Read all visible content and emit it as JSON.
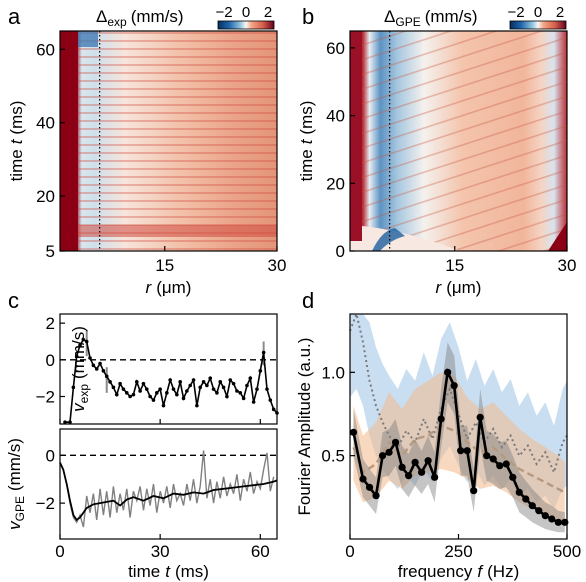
{
  "colors": {
    "hot": "#8b0015",
    "cold": "#1a4f8c",
    "black": "#000000",
    "gray": "#7a7a7a",
    "blue_band": "#9fc3e6",
    "orange_band": "#f2b98a",
    "tan": "#b59a80"
  },
  "chart_data": [
    {
      "panel": "a",
      "type": "heatmap",
      "colorbar_label_main": "Δ",
      "colorbar_label_sub": "exp",
      "colorbar_label_unit": "(mm/s)",
      "colorbar_ticks": [
        "−2",
        "0",
        "2"
      ],
      "clim": [
        -2,
        2
      ],
      "xlabel_main": "r",
      "xlabel_unit": "(μm)",
      "ylabel_main": "time",
      "ylabel_var": "t",
      "ylabel_unit": "(ms)",
      "xlim": [
        1,
        30
      ],
      "ylim": [
        5,
        65
      ],
      "xticks": [
        15,
        30
      ],
      "yticks": [
        5,
        20,
        40,
        60
      ],
      "marker_r": 6.3
    },
    {
      "panel": "b",
      "type": "heatmap",
      "colorbar_label_main": "Δ",
      "colorbar_label_sub": "GPE",
      "colorbar_label_unit": "(mm/s)",
      "colorbar_ticks": [
        "−2",
        "0",
        "2"
      ],
      "clim": [
        -2,
        2
      ],
      "xlabel_main": "r",
      "xlabel_unit": "(μm)",
      "ylabel_main": "time",
      "ylabel_var": "t",
      "ylabel_unit": "(ms)",
      "xlim": [
        1,
        30
      ],
      "ylim": [
        0,
        65
      ],
      "xticks": [
        15,
        30
      ],
      "yticks": [
        0,
        20,
        40,
        60
      ],
      "marker_r": 6.3
    },
    {
      "panel": "c",
      "type": "line",
      "ylabel_var": "v",
      "ylabel_sub": "exp",
      "ylabel_unit": "(mm/s)",
      "xlim": [
        0,
        65
      ],
      "ylim": [
        -3.5,
        2.5
      ],
      "yticks": [
        2,
        0,
        -2
      ],
      "reference_y": 0,
      "x": [
        1.5,
        3,
        4,
        5,
        6,
        7,
        8,
        9,
        10,
        11,
        12,
        13,
        14,
        15,
        16,
        17,
        18,
        19,
        20,
        21,
        22,
        23,
        24,
        25,
        26,
        27,
        28,
        29,
        30,
        31,
        32,
        33,
        34,
        35,
        36,
        37,
        38,
        39,
        40,
        41,
        42,
        43,
        44,
        45,
        46,
        47,
        48,
        49,
        50,
        51,
        52,
        53,
        54,
        55,
        56,
        57,
        58,
        59,
        60,
        61,
        62,
        63,
        64,
        65
      ],
      "y": [
        -3.4,
        -3.4,
        -1.5,
        0.2,
        0.8,
        1.1,
        1.0,
        0.1,
        -0.3,
        -0.5,
        -0.2,
        -0.6,
        -0.9,
        -1.2,
        -1.5,
        -1.9,
        -1.3,
        -1.6,
        -1.8,
        -2.0,
        -1.9,
        -1.2,
        -1.7,
        -1.3,
        -1.6,
        -2.0,
        -2.2,
        -1.8,
        -1.6,
        -2.5,
        -1.8,
        -1.1,
        -1.6,
        -1.9,
        -1.2,
        -2.1,
        -1.7,
        -1.4,
        -1.1,
        -2.5,
        -1.5,
        -1.2,
        -1.4,
        -1.0,
        -1.6,
        -1.8,
        -1.2,
        -1.5,
        -2.0,
        -1.1,
        -1.3,
        -1.7,
        -1.8,
        -2.1,
        -1.4,
        -1.0,
        -2.3,
        -1.6,
        -0.6,
        0.4,
        -1.6,
        -2.2,
        -2.7,
        -2.9
      ],
      "error_bars": [
        {
          "x": 8,
          "low": 0.2,
          "high": 1.6
        },
        {
          "x": 14,
          "low": -1.8,
          "high": -0.4
        },
        {
          "x": 61,
          "low": -0.3,
          "high": 1.0
        }
      ]
    },
    {
      "panel": "c-lower",
      "type": "line",
      "xlabel_main": "time",
      "xlabel_var": "t",
      "xlabel_unit": "(ms)",
      "ylabel_var": "v",
      "ylabel_sub": "GPE",
      "ylabel_unit": "(mm/s)",
      "xlim": [
        0,
        65
      ],
      "ylim": [
        -3.5,
        1.1
      ],
      "xticks": [
        0,
        30,
        60
      ],
      "yticks": [
        0,
        -2
      ],
      "reference_y": 0,
      "series": [
        {
          "name": "",
          "role": "smoothed",
          "x": [
            0,
            1,
            2,
            3,
            4,
            5,
            6,
            8,
            10,
            12,
            14,
            16,
            18,
            20,
            22,
            25,
            28,
            31,
            34,
            37,
            40,
            43,
            46,
            49,
            52,
            55,
            58,
            61,
            64,
            65
          ],
          "y": [
            -0.3,
            -0.6,
            -1.2,
            -1.9,
            -2.5,
            -2.7,
            -2.6,
            -2.2,
            -2.05,
            -2.0,
            -1.95,
            -1.9,
            -2.1,
            -1.85,
            -1.75,
            -1.9,
            -1.7,
            -1.8,
            -1.6,
            -1.65,
            -1.55,
            -1.6,
            -1.45,
            -1.4,
            -1.35,
            -1.3,
            -1.25,
            -1.2,
            -1.1,
            -1.05
          ]
        },
        {
          "name": "",
          "role": "raw",
          "x": [
            2,
            3,
            4,
            5,
            6,
            7,
            8,
            9,
            10,
            11,
            12,
            13,
            14,
            15,
            16,
            17,
            18,
            19,
            20,
            21,
            22,
            23,
            24,
            25,
            26,
            27,
            28,
            29,
            30,
            31,
            32,
            33,
            34,
            35,
            36,
            37,
            38,
            39,
            40,
            41,
            42,
            43,
            44,
            45,
            46,
            47,
            48,
            49,
            50,
            51,
            52,
            53,
            54,
            55,
            56,
            57,
            58,
            59,
            60,
            61,
            62,
            63,
            64
          ],
          "y": [
            -1.2,
            -2.0,
            -2.6,
            -2.8,
            -2.5,
            -3.0,
            -1.7,
            -2.4,
            -1.6,
            -2.7,
            -1.4,
            -2.5,
            -1.5,
            -2.6,
            -1.3,
            -2.4,
            -1.6,
            -2.3,
            -1.4,
            -2.6,
            -1.5,
            -1.9,
            -1.3,
            -2.3,
            -1.4,
            -2.1,
            -1.2,
            -2.4,
            -1.5,
            -2.0,
            -1.3,
            -2.2,
            -1.2,
            -1.9,
            -1.6,
            -2.1,
            -1.2,
            -1.9,
            -1.0,
            -2.0,
            -1.3,
            0.2,
            -1.8,
            -1.0,
            -2.0,
            -1.1,
            -1.8,
            -0.9,
            -1.7,
            -1.2,
            -1.6,
            -0.8,
            -1.9,
            -1.0,
            -1.5,
            -0.7,
            -1.6,
            -1.1,
            -1.4,
            -0.6,
            0.1,
            -1.5,
            -0.9
          ]
        }
      ]
    },
    {
      "panel": "d",
      "type": "line",
      "xlabel_main": "frequency",
      "xlabel_var": "f",
      "xlabel_unit": "(Hz)",
      "ylabel_main": "Fourier Amplitude",
      "ylabel_unit": "(a.u.)",
      "xlim": [
        0,
        500
      ],
      "ylim": [
        0,
        1.35
      ],
      "xticks": [
        0,
        250,
        500
      ],
      "yticks": [
        0.5,
        1.0
      ],
      "series": [
        {
          "name": "",
          "role": "solid-markers",
          "x": [
            8,
            30,
            45,
            60,
            75,
            90,
            105,
            120,
            135,
            150,
            165,
            180,
            195,
            210,
            225,
            240,
            255,
            270,
            285,
            300,
            315,
            330,
            345,
            360,
            375,
            390,
            405,
            420,
            435,
            450,
            465,
            480,
            495
          ],
          "y": [
            0.64,
            0.36,
            0.31,
            0.26,
            0.5,
            0.52,
            0.58,
            0.43,
            0.38,
            0.46,
            0.4,
            0.47,
            0.37,
            0.72,
            1.0,
            0.92,
            0.53,
            0.53,
            0.29,
            0.73,
            0.5,
            0.48,
            0.44,
            0.45,
            0.37,
            0.28,
            0.24,
            0.2,
            0.17,
            0.14,
            0.12,
            0.1,
            0.1
          ],
          "band_low": [
            0.5,
            0.25,
            0.2,
            0.15,
            0.37,
            0.38,
            0.44,
            0.3,
            0.25,
            0.32,
            0.27,
            0.33,
            0.22,
            0.55,
            0.82,
            0.75,
            0.38,
            0.38,
            0.16,
            0.55,
            0.35,
            0.33,
            0.3,
            0.31,
            0.25,
            0.16,
            0.13,
            0.1,
            0.08,
            0.06,
            0.05,
            0.04,
            0.04
          ],
          "band_high": [
            0.78,
            0.48,
            0.42,
            0.37,
            0.64,
            0.66,
            0.72,
            0.56,
            0.51,
            0.6,
            0.53,
            0.62,
            0.52,
            0.9,
            1.18,
            1.1,
            0.68,
            0.68,
            0.42,
            0.9,
            0.65,
            0.63,
            0.58,
            0.59,
            0.5,
            0.4,
            0.35,
            0.3,
            0.26,
            0.22,
            0.2,
            0.17,
            0.16
          ]
        },
        {
          "name": "",
          "role": "dashed-tan",
          "x": [
            8,
            30,
            60,
            90,
            120,
            150,
            180,
            210,
            240,
            270,
            300,
            330,
            360,
            390,
            420,
            450,
            480,
            495
          ],
          "y": [
            0.55,
            0.4,
            0.45,
            0.58,
            0.5,
            0.6,
            0.62,
            0.68,
            0.65,
            0.58,
            0.52,
            0.55,
            0.48,
            0.42,
            0.38,
            0.34,
            0.3,
            0.28
          ],
          "band_low": [
            0.35,
            0.22,
            0.25,
            0.35,
            0.3,
            0.38,
            0.4,
            0.42,
            0.4,
            0.36,
            0.3,
            0.32,
            0.28,
            0.22,
            0.18,
            0.15,
            0.12,
            0.1
          ],
          "band_high": [
            0.8,
            0.62,
            0.7,
            0.88,
            0.78,
            0.9,
            0.95,
            1.0,
            0.98,
            0.85,
            0.78,
            0.82,
            0.74,
            0.66,
            0.6,
            0.55,
            0.5,
            0.46
          ]
        },
        {
          "name": "",
          "role": "dotted-gray",
          "x": [
            0,
            15,
            30,
            45,
            60,
            75,
            90,
            110,
            130,
            150,
            170,
            190,
            210,
            230,
            250,
            270,
            290,
            310,
            330,
            350,
            370,
            390,
            410,
            430,
            450,
            470,
            490,
            500
          ],
          "y": [
            1.25,
            1.35,
            1.18,
            0.95,
            0.8,
            0.7,
            0.62,
            0.55,
            0.65,
            0.58,
            0.72,
            0.6,
            0.78,
            0.9,
            0.75,
            0.6,
            0.7,
            0.58,
            0.66,
            0.55,
            0.62,
            0.5,
            0.56,
            0.45,
            0.52,
            0.4,
            0.58,
            0.62
          ],
          "band_low": [
            0.85,
            0.9,
            0.8,
            0.62,
            0.5,
            0.42,
            0.36,
            0.3,
            0.38,
            0.32,
            0.42,
            0.34,
            0.48,
            0.56,
            0.44,
            0.34,
            0.42,
            0.32,
            0.38,
            0.3,
            0.36,
            0.26,
            0.3,
            0.22,
            0.26,
            0.18,
            0.3,
            0.32
          ],
          "band_high": [
            1.35,
            1.35,
            1.35,
            1.3,
            1.15,
            1.05,
            0.98,
            0.9,
            1.02,
            0.95,
            1.12,
            0.98,
            1.2,
            1.3,
            1.15,
            0.95,
            1.08,
            0.92,
            1.02,
            0.88,
            0.96,
            0.8,
            0.88,
            0.74,
            0.82,
            0.68,
            0.9,
            0.95
          ]
        }
      ]
    }
  ]
}
